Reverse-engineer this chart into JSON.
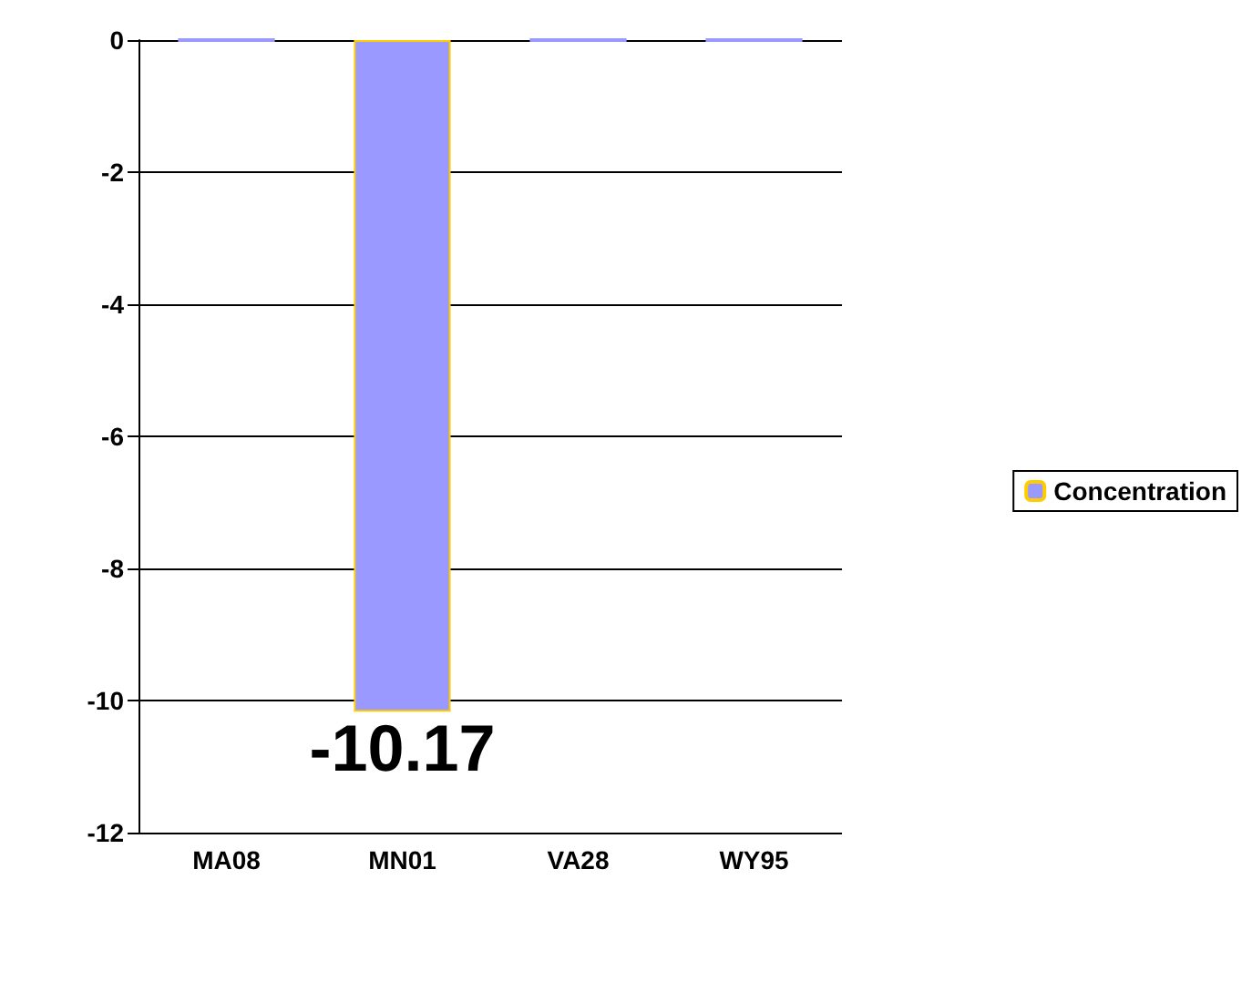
{
  "chart_data": {
    "type": "bar",
    "categories": [
      "MA08",
      "MN01",
      "VA28",
      "WY95"
    ],
    "series": [
      {
        "name": "Concentration",
        "color": "#9999ff",
        "values": [
          0,
          -10.17,
          0,
          0
        ],
        "value_labels": [
          null,
          "-10.17",
          null,
          null
        ]
      }
    ],
    "ylim": [
      -12,
      0
    ],
    "yticks": [
      -12,
      -10,
      -8,
      -6,
      -4,
      -2,
      0
    ],
    "grid": "y",
    "legend": "right"
  }
}
